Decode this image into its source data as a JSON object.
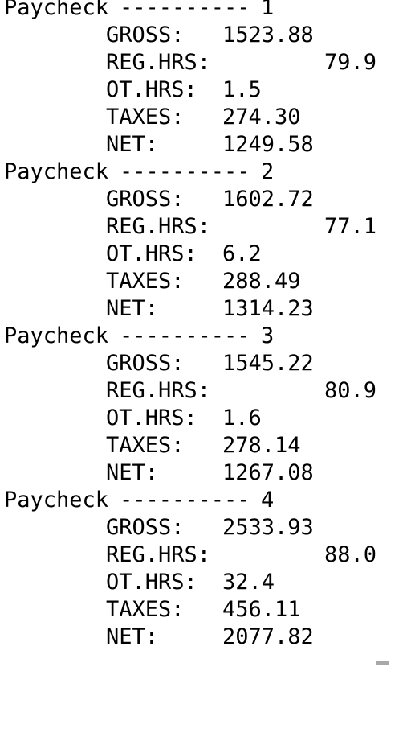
{
  "paychecks": [
    {
      "header_label": "Paycheck",
      "header_dashes": "----------",
      "number": "1",
      "fields": [
        {
          "label": "GROSS:",
          "value": "1523.88"
        },
        {
          "label": "REG.HRS:",
          "value": "79.9"
        },
        {
          "label": "OT.HRS:",
          "value": "1.5"
        },
        {
          "label": "TAXES:",
          "value": "274.30"
        },
        {
          "label": "NET:",
          "value": "1249.58"
        }
      ]
    },
    {
      "header_label": "Paycheck",
      "header_dashes": "----------",
      "number": "2",
      "fields": [
        {
          "label": "GROSS:",
          "value": "1602.72"
        },
        {
          "label": "REG.HRS:",
          "value": "77.1"
        },
        {
          "label": "OT.HRS:",
          "value": "6.2"
        },
        {
          "label": "TAXES:",
          "value": "288.49"
        },
        {
          "label": "NET:",
          "value": "1314.23"
        }
      ]
    },
    {
      "header_label": "Paycheck",
      "header_dashes": "----------",
      "number": "3",
      "fields": [
        {
          "label": "GROSS:",
          "value": "1545.22"
        },
        {
          "label": "REG.HRS:",
          "value": "80.9"
        },
        {
          "label": "OT.HRS:",
          "value": "1.6"
        },
        {
          "label": "TAXES:",
          "value": "278.14"
        },
        {
          "label": "NET:",
          "value": "1267.08"
        }
      ]
    },
    {
      "header_label": "Paycheck",
      "header_dashes": "----------",
      "number": "4",
      "fields": [
        {
          "label": "GROSS:",
          "value": "2533.93"
        },
        {
          "label": "REG.HRS:",
          "value": "88.0"
        },
        {
          "label": "OT.HRS:",
          "value": "32.4"
        },
        {
          "label": "TAXES:",
          "value": "456.11"
        },
        {
          "label": "NET:",
          "value": "2077.82"
        }
      ]
    }
  ],
  "colors": {
    "background": "#ffffff",
    "text": "#000000",
    "scrollbar": "#a8a8a8"
  }
}
